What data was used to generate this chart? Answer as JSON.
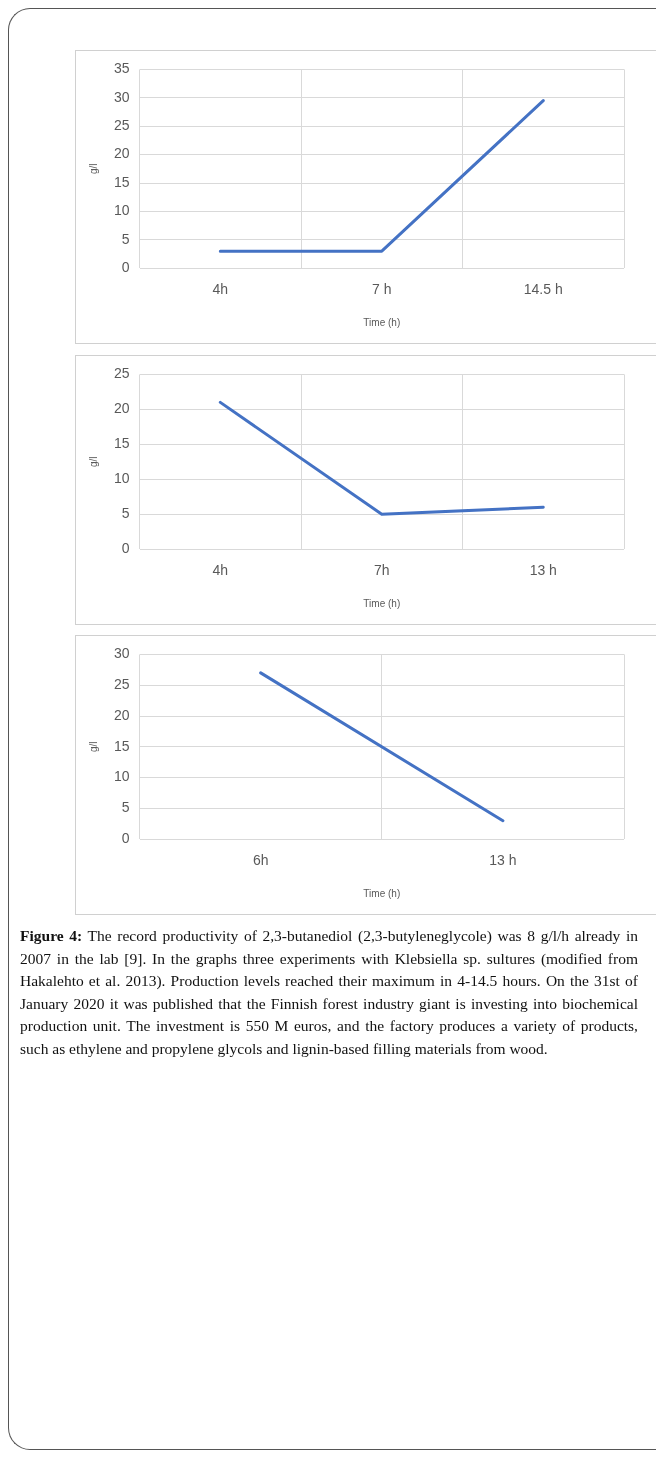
{
  "chart_data": [
    {
      "type": "line",
      "categories": [
        "4h",
        "7 h",
        "14.5 h"
      ],
      "xlabel": "Time (h)",
      "ylabel": "g/l",
      "series": [
        {
          "color": "#4472c4",
          "values": [
            3,
            3,
            29.5
          ]
        }
      ],
      "ylim": [
        0,
        35
      ],
      "yticks": [
        0,
        5,
        10,
        15,
        20,
        25,
        30,
        35
      ],
      "grid": true,
      "legend": false,
      "marker": "none"
    },
    {
      "type": "line",
      "categories": [
        "4h",
        "7h",
        "13 h"
      ],
      "xlabel": "Time (h)",
      "ylabel": "g/l",
      "series": [
        {
          "color": "#4472c4",
          "values": [
            21,
            5,
            6
          ]
        }
      ],
      "ylim": [
        0,
        25
      ],
      "yticks": [
        0,
        5,
        10,
        15,
        20,
        25
      ],
      "grid": true,
      "legend": false,
      "marker": "none"
    },
    {
      "type": "line",
      "categories": [
        "6h",
        "13 h"
      ],
      "xlabel": "Time (h)",
      "ylabel": "g/l",
      "series": [
        {
          "color": "#4472c4",
          "values": [
            27,
            3
          ]
        }
      ],
      "ylim": [
        0,
        30
      ],
      "yticks": [
        0,
        5,
        10,
        15,
        20,
        25,
        30
      ],
      "grid": true,
      "legend": false,
      "marker": "none",
      "annotations": [
        "Figure 4: The record productivity of 2,3-butanediol (2,3-butyleneglycole) was 8 g/l/h already in 2007 in the lab [9]. In the graphs three experiments with Klebsiella sp. sultures (modified from Hakalehto et al. 2013). Production levels reached their maximum in 4-14.5 hours. On the 31st of January 2020 it was published that the Finnish forest industry giant is investing into biochemical production unit. The investment is 550 M euros, and the factory produces a variety of products, such as ethylene and propylene glycols and lignin-based filling materials from wood."
      ]
    }
  ]
}
